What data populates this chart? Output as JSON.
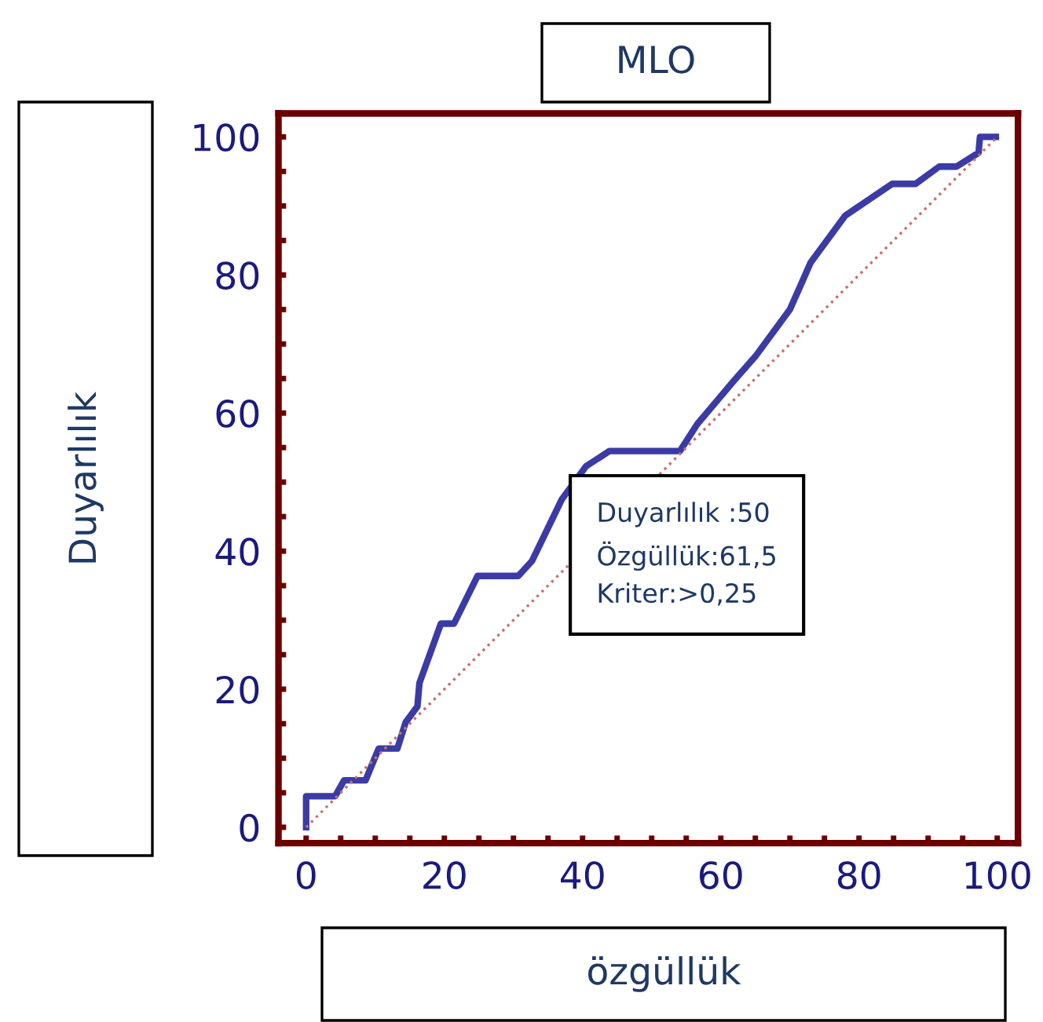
{
  "chart_data": {
    "type": "line",
    "title": "MLO",
    "xlabel": "özgüllük",
    "ylabel": "Duyarlılık",
    "annotations": [
      "Duyarlılık :50\nÖzgüllük:61,5\nKriter:>0,25"
    ],
    "xlim": [
      -4,
      103
    ],
    "ylim": [
      -2.3,
      103.4
    ],
    "xticks": [
      0,
      {
        "value": 5,
        "label": null
      },
      {
        "value": 10,
        "label": null
      },
      {
        "value": 15,
        "label": null
      },
      20,
      {
        "value": 25,
        "label": null
      },
      {
        "value": 30,
        "label": null
      },
      {
        "value": 35,
        "label": null
      },
      40,
      {
        "value": 45,
        "label": null
      },
      {
        "value": 50,
        "label": null
      },
      {
        "value": 55,
        "label": null
      },
      60,
      {
        "value": 65,
        "label": null
      },
      {
        "value": 70,
        "label": null
      },
      {
        "value": 75,
        "label": null
      },
      80,
      {
        "value": 85,
        "label": null
      },
      {
        "value": 90,
        "label": null
      },
      {
        "value": 95,
        "label": null
      },
      100
    ],
    "yticks": [
      0,
      {
        "value": 5,
        "label": null
      },
      {
        "value": 10,
        "label": null
      },
      {
        "value": 15,
        "label": null
      },
      20,
      {
        "value": 25,
        "label": null
      },
      {
        "value": 30,
        "label": null
      },
      {
        "value": 35,
        "label": null
      },
      40,
      {
        "value": 45,
        "label": null
      },
      {
        "value": 50,
        "label": null
      },
      {
        "value": 55,
        "label": null
      },
      60,
      {
        "value": 65,
        "label": null
      },
      {
        "value": 70,
        "label": null
      },
      {
        "value": 75,
        "label": null
      },
      80,
      {
        "value": 85,
        "label": null
      },
      {
        "value": 90,
        "label": null
      },
      {
        "value": 95,
        "label": null
      },
      100
    ],
    "grid": false,
    "legend": false,
    "marker": "none",
    "series": [
      {
        "color": "#3b3ba6",
        "line_style": "solid",
        "x": [
          0,
          0,
          4.2,
          5.5,
          8.6,
          10.5,
          13.2,
          14.4,
          16.1,
          16.4,
          19.5,
          21.4,
          24.8,
          30.7,
          32.7,
          37,
          40.5,
          43.9,
          54.1,
          56.6,
          62,
          65,
          70,
          73,
          78,
          84.8,
          88.2,
          91.6,
          94.1,
          97.3,
          97.5,
          99.8
        ],
        "values": [
          0,
          4.5,
          4.5,
          6.8,
          6.8,
          11.4,
          11.4,
          15.2,
          17.5,
          20.9,
          29.5,
          29.5,
          36.4,
          36.4,
          38.6,
          47.5,
          52.3,
          54.5,
          54.5,
          58.4,
          64.8,
          68.2,
          75,
          81.8,
          88.6,
          93.2,
          93.2,
          95.7,
          95.7,
          97.7,
          100,
          100
        ]
      },
      {
        "color": "#c87070",
        "line_style": "dotted",
        "x": [
          0,
          100
        ],
        "values": [
          0,
          100
        ]
      }
    ]
  }
}
